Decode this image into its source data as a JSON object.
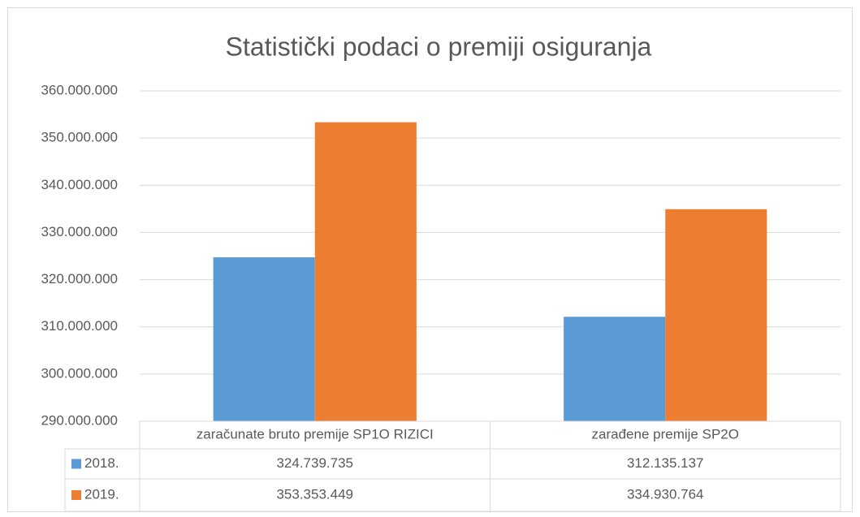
{
  "chart_data": {
    "type": "bar",
    "title": "Statistički podaci o premiji osiguranja",
    "categories": [
      "zaračunate bruto premije SP1O RIZICI",
      "zarađene premije SP2O"
    ],
    "series": [
      {
        "name": "2018.",
        "color": "#5b9bd5",
        "values": [
          324739735,
          312135137
        ],
        "value_labels": [
          "324.739.735",
          "312.135.137"
        ]
      },
      {
        "name": "2019.",
        "color": "#ed7d31",
        "values": [
          353353449,
          334930764
        ],
        "value_labels": [
          "353.353.449",
          "334.930.764"
        ]
      }
    ],
    "ylim": [
      290000000,
      360000000
    ],
    "yticks": [
      {
        "value": 290000000,
        "label": "290.000.000"
      },
      {
        "value": 300000000,
        "label": "300.000.000"
      },
      {
        "value": 310000000,
        "label": "310.000.000"
      },
      {
        "value": 320000000,
        "label": "320.000.000"
      },
      {
        "value": 330000000,
        "label": "330.000.000"
      },
      {
        "value": 340000000,
        "label": "340.000.000"
      },
      {
        "value": 350000000,
        "label": "350.000.000"
      },
      {
        "value": 360000000,
        "label": "360.000.000"
      }
    ],
    "grid": true
  }
}
